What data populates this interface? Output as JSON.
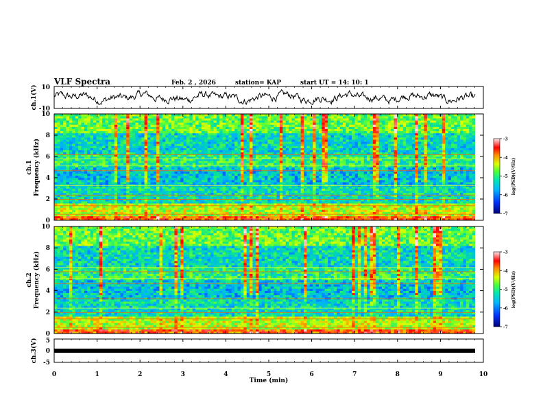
{
  "header": {
    "title": "VLF Spectra",
    "date": "Feb. 2  , 2026",
    "station": "station= KAP",
    "start": "start  UT =   14: 10: 1"
  },
  "colors": {
    "trace": "#000000",
    "colormap": [
      "#00007a",
      "#0040ff",
      "#00b0ff",
      "#00e0a0",
      "#60ff30",
      "#e0ff00",
      "#ff8000",
      "#ff0000",
      "#ffe0e0"
    ]
  },
  "chart_data": [
    {
      "type": "line",
      "name": "ch1-voltage",
      "ylabel": "ch.1(V)",
      "ylim": [
        -10,
        10
      ],
      "yticks": [
        "10",
        "-10"
      ],
      "xlim": [
        0,
        10
      ],
      "description_values": "noisy waveform roughly between -5 and 5 V"
    },
    {
      "type": "heatmap",
      "name": "ch1-spectrogram",
      "ylabel": "ch.1\nFrequency  (kHz)",
      "ylabel_line1": "ch.1",
      "ylabel_line2": "Frequency  (kHz)",
      "ylim": [
        0,
        10
      ],
      "yticks": [
        "0",
        "2",
        "4",
        "6",
        "8",
        "10"
      ],
      "colorbar": {
        "label": "log(PSD)(V²/Hz)",
        "ticks": [
          "-3",
          "-4",
          "-5",
          "-6",
          "-7"
        ],
        "range": [
          -7,
          -3
        ]
      }
    },
    {
      "type": "heatmap",
      "name": "ch2-spectrogram",
      "ylabel": "ch.2\nFrequency  (kHz)",
      "ylabel_line1": "ch.2",
      "ylabel_line2": "Frequency  (kHz)",
      "ylim": [
        0,
        10
      ],
      "yticks": [
        "0",
        "2",
        "4",
        "6",
        "8",
        "10"
      ],
      "colorbar": {
        "label": "log(PSD)(V²/Hz)",
        "ticks": [
          "-3",
          "-4",
          "-5",
          "-6",
          "-7"
        ],
        "range": [
          -7,
          -3
        ]
      }
    },
    {
      "type": "line",
      "name": "ch3-voltage",
      "ylabel": "ch.3(V)",
      "ylim": [
        -5,
        5
      ],
      "yticks": [
        "5",
        "0",
        "-5"
      ],
      "xlim": [
        0,
        10
      ]
    }
  ],
  "xaxis": {
    "label": "Time  (min)",
    "ticks": [
      "0",
      "1",
      "2",
      "3",
      "4",
      "5",
      "6",
      "7",
      "8",
      "9",
      "10"
    ],
    "range": [
      0,
      10
    ]
  }
}
